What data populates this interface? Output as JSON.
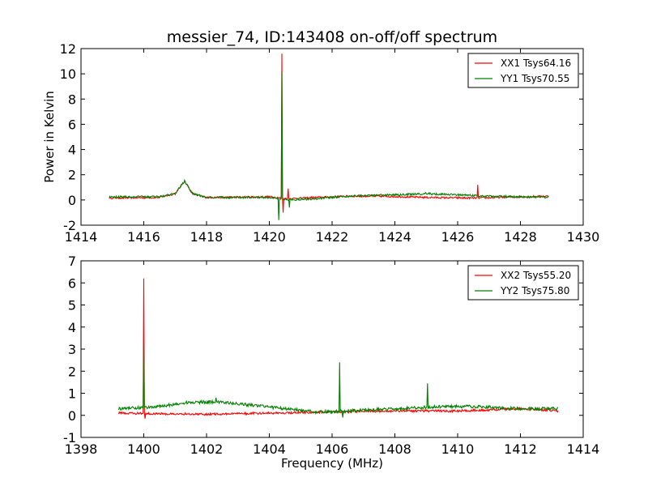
{
  "title": "messier_74, ID:143408 on-off/off spectrum",
  "chart_data": [
    {
      "type": "line",
      "xlabel": "",
      "ylabel": "Power in Kelvin",
      "xlim": [
        1414,
        1430
      ],
      "ylim": [
        -2,
        12
      ],
      "xticks": [
        1414,
        1416,
        1418,
        1420,
        1422,
        1424,
        1426,
        1428,
        1430
      ],
      "yticks": [
        -2,
        0,
        2,
        4,
        6,
        8,
        10,
        12
      ],
      "legend_position": "top-right",
      "series": [
        {
          "name": "XX1 Tsys64.16",
          "color": "#ff0000",
          "x_range": [
            1414.9,
            1428.9
          ],
          "baseline": [
            [
              1414.9,
              0.15
            ],
            [
              1416.5,
              0.2
            ],
            [
              1417.0,
              0.5
            ],
            [
              1417.3,
              1.5
            ],
            [
              1417.55,
              0.5
            ],
            [
              1418,
              0.2
            ],
            [
              1420.0,
              0.25
            ],
            [
              1420.6,
              0.1
            ],
            [
              1421.5,
              0.2
            ],
            [
              1422.5,
              0.3
            ],
            [
              1423.5,
              0.3
            ],
            [
              1425,
              0.2
            ],
            [
              1426.5,
              0.15
            ],
            [
              1428.9,
              0.3
            ]
          ],
          "noise": 0.07,
          "spikes": [
            [
              1420.4,
              11.6
            ],
            [
              1420.45,
              -1.0
            ],
            [
              1420.6,
              0.9
            ],
            [
              1426.65,
              1.2
            ]
          ]
        },
        {
          "name": "YY1 Tsys70.55",
          "color": "#008000",
          "x_range": [
            1414.9,
            1428.9
          ],
          "baseline": [
            [
              1414.9,
              0.25
            ],
            [
              1416.5,
              0.25
            ],
            [
              1417.0,
              0.5
            ],
            [
              1417.3,
              1.5
            ],
            [
              1417.55,
              0.5
            ],
            [
              1418,
              0.2
            ],
            [
              1420.0,
              0.2
            ],
            [
              1420.6,
              0.0
            ],
            [
              1421.5,
              0.1
            ],
            [
              1422.5,
              0.3
            ],
            [
              1424,
              0.4
            ],
            [
              1425,
              0.5
            ],
            [
              1426,
              0.4
            ],
            [
              1427,
              0.3
            ],
            [
              1428.9,
              0.2
            ]
          ],
          "noise": 0.08,
          "spikes": [
            [
              1420.4,
              10.1
            ],
            [
              1420.3,
              -1.6
            ],
            [
              1420.65,
              -0.6
            ]
          ]
        }
      ]
    },
    {
      "type": "line",
      "xlabel": "Frequency (MHz)",
      "ylabel": "",
      "xlim": [
        1398,
        1414
      ],
      "ylim": [
        -1,
        7
      ],
      "xticks": [
        1398,
        1400,
        1402,
        1404,
        1406,
        1408,
        1410,
        1412,
        1414
      ],
      "yticks": [
        -1,
        0,
        1,
        2,
        3,
        4,
        5,
        6,
        7
      ],
      "legend_position": "top-right",
      "series": [
        {
          "name": "XX2 Tsys55.20",
          "color": "#ff0000",
          "x_range": [
            1399.2,
            1413.2
          ],
          "baseline": [
            [
              1399.2,
              0.1
            ],
            [
              1402,
              0.05
            ],
            [
              1404,
              0.1
            ],
            [
              1406,
              0.15
            ],
            [
              1408,
              0.2
            ],
            [
              1410,
              0.2
            ],
            [
              1412,
              0.3
            ],
            [
              1413.2,
              0.2
            ]
          ],
          "noise": 0.05,
          "spikes": [
            [
              1400.0,
              6.2
            ],
            [
              1400.05,
              -0.15
            ]
          ]
        },
        {
          "name": "YY2 Tsys75.80",
          "color": "#008000",
          "x_range": [
            1399.2,
            1413.2
          ],
          "baseline": [
            [
              1399.2,
              0.3
            ],
            [
              1400.5,
              0.4
            ],
            [
              1401.5,
              0.6
            ],
            [
              1402.5,
              0.6
            ],
            [
              1403.5,
              0.45
            ],
            [
              1404.5,
              0.3
            ],
            [
              1405.5,
              0.15
            ],
            [
              1406.5,
              0.2
            ],
            [
              1408,
              0.3
            ],
            [
              1409.5,
              0.4
            ],
            [
              1410.5,
              0.4
            ],
            [
              1412,
              0.3
            ],
            [
              1413.2,
              0.3
            ]
          ],
          "noise": 0.07,
          "spikes": [
            [
              1400.0,
              3.3
            ],
            [
              1406.25,
              2.4
            ],
            [
              1406.35,
              -0.1
            ],
            [
              1409.05,
              1.45
            ],
            [
              1402.3,
              0.8
            ]
          ]
        }
      ]
    }
  ]
}
